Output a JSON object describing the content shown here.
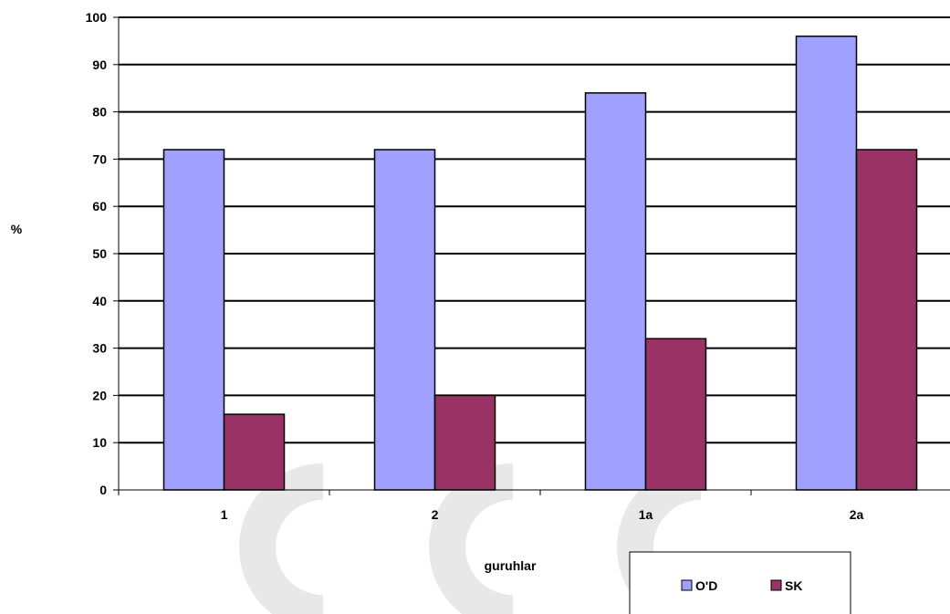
{
  "chart_data": {
    "type": "bar",
    "title": "",
    "xlabel": "guruhlar",
    "ylabel": "%",
    "ylim": [
      0,
      100
    ],
    "yticks": [
      0,
      10,
      20,
      30,
      40,
      50,
      60,
      70,
      80,
      90,
      100
    ],
    "categories": [
      "1",
      "2",
      "1a",
      "2a"
    ],
    "series": [
      {
        "name": "O'D",
        "values": [
          72,
          72,
          84,
          96
        ],
        "color": "#a0a0ff"
      },
      {
        "name": "SK",
        "values": [
          16,
          20,
          32,
          72
        ],
        "color": "#993366"
      }
    ],
    "grid": true,
    "legend_position": "bottom-right",
    "watermark_color": "#e8e8e8"
  }
}
